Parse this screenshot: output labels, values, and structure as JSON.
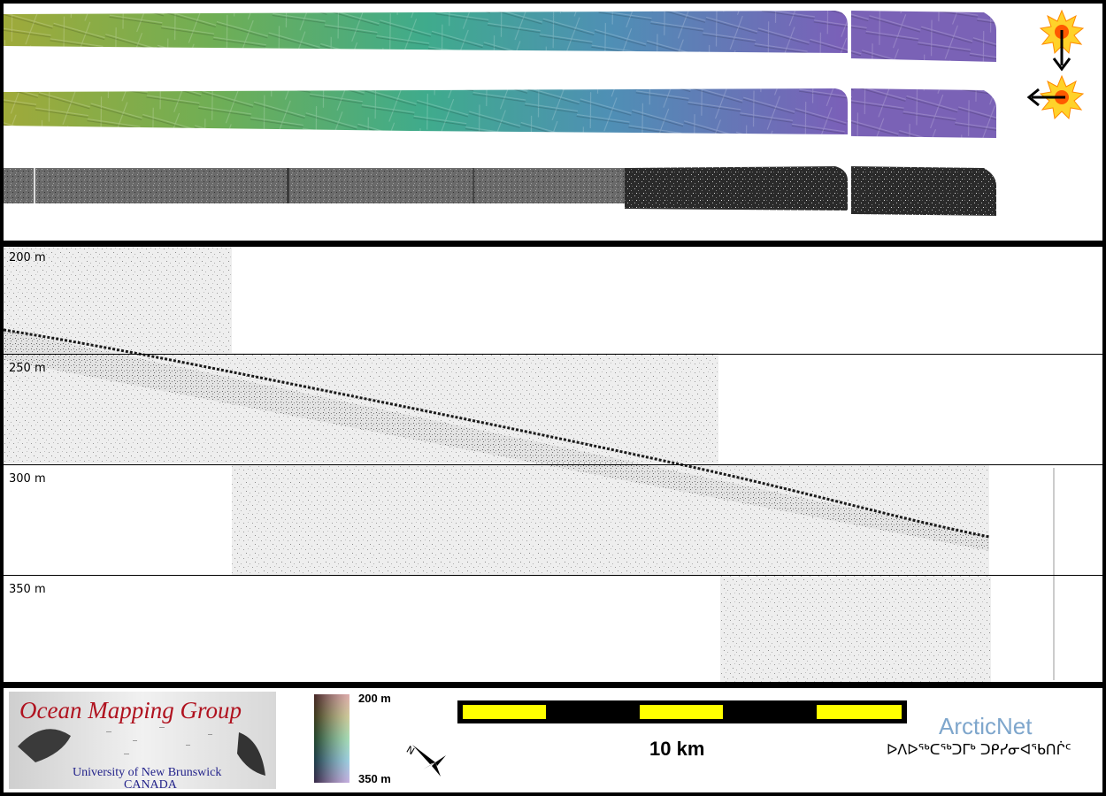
{
  "profile": {
    "depth_labels": [
      "200 m",
      "250 m",
      "300 m",
      "350 m"
    ]
  },
  "legend": {
    "org_title": "Ocean Mapping Group",
    "org_subtitle_1": "University of New Brunswick",
    "org_subtitle_2": "CANADA",
    "colorbar_top": "200 m",
    "colorbar_bottom": "350 m",
    "north_label": "N",
    "scale_label": "10 km",
    "partner_name": "ArcticNet",
    "partner_syllabics": "ᐅᐱᐅᖅᑕᖅᑐᒥᒃ ᑐᑭᓯᓂᐊᖃᑎᒌᑦ"
  },
  "colors": {
    "swath_start": "#9aaa3c",
    "swath_mid": "#3ea79a",
    "swath_end": "#7a5fb8",
    "sun_yellow": "#ffd22a",
    "sun_orange": "#ff8a00",
    "scale_fill": "#ffff00",
    "org_red": "#b0121f",
    "org_blue": "#22228a",
    "partner_blue": "#7ea6cc"
  }
}
